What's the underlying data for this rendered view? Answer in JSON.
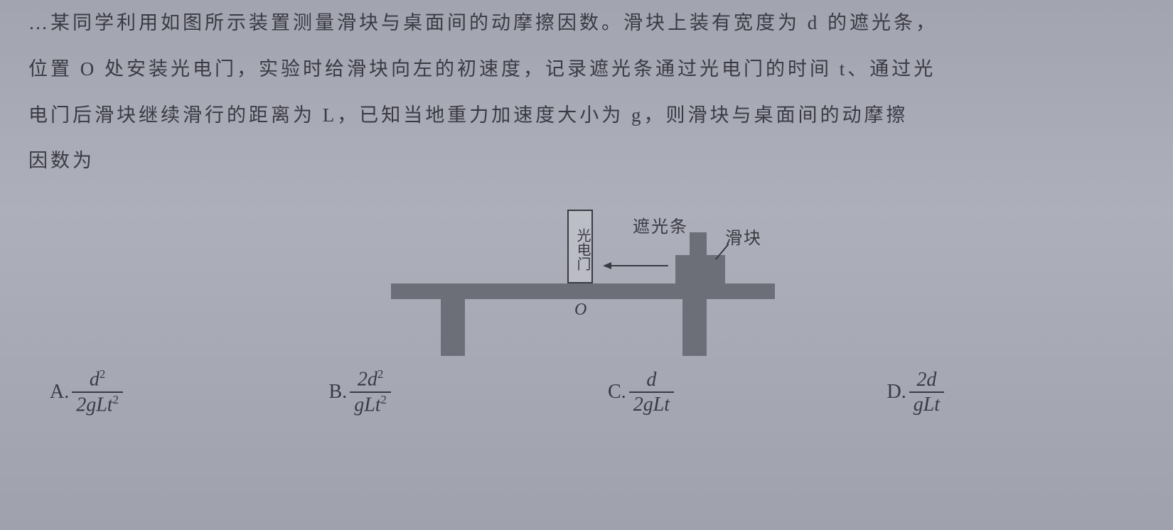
{
  "question": {
    "line0": "…某同学利用如图所示装置测量滑块与桌面间的动摩擦因数。滑块上装有宽度为 d 的遮光条，",
    "line1": "位置 O 处安装光电门，实验时给滑块向左的初速度，记录遮光条通过光电门的时间 t、通过光",
    "line2": "电门后滑块继续滑行的距离为 L，已知当地重力加速度大小为 g，则滑块与桌面间的动摩擦",
    "line3": "因数为"
  },
  "diagram": {
    "gate_label": "光电门",
    "flag_label": "遮光条",
    "block_label": "滑块",
    "origin_label": "O",
    "colors": {
      "solid": "#6d6f78",
      "stroke": "#3a3a42",
      "background": "#a8aab5"
    }
  },
  "options": {
    "A": {
      "label": "A.",
      "num_html": "d<sup>2</sup>",
      "den_html": "2gLt<sup>2</sup>"
    },
    "B": {
      "label": "B.",
      "num_html": "2d<sup>2</sup>",
      "den_html": "gLt<sup>2</sup>"
    },
    "C": {
      "label": "C.",
      "num_html": "d",
      "den_html": "2gLt"
    },
    "D": {
      "label": "D.",
      "num_html": "2d",
      "den_html": "gLt"
    }
  }
}
